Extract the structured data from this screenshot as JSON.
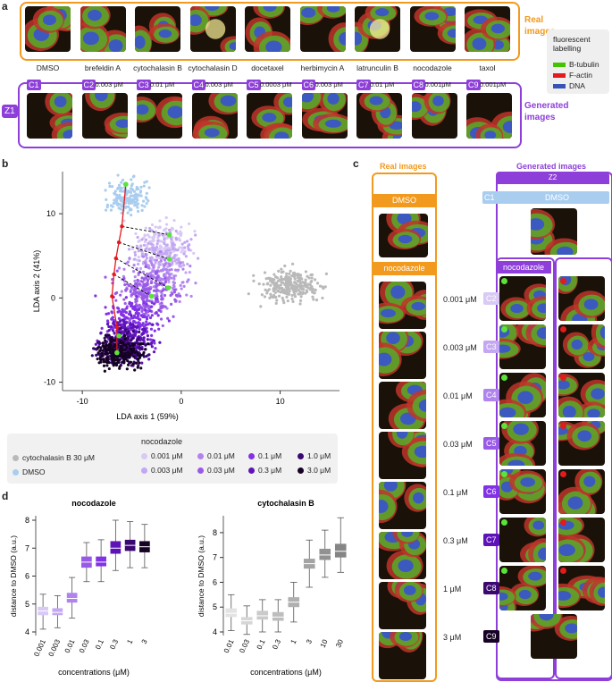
{
  "panel_a": {
    "label": "a",
    "real_images_label": "Real\nimages",
    "generated_images_label": "Generated\nimages",
    "treatments": [
      "DMSO",
      "brefeldin A",
      "cytochalasin B",
      "cytochalasin D",
      "docetaxel",
      "herbimycin A",
      "latrunculin B",
      "nocodazole",
      "taxol"
    ],
    "conditions": [
      {
        "tag": "C1",
        "dose": ""
      },
      {
        "tag": "C2",
        "dose": "0.003 μM"
      },
      {
        "tag": "C3",
        "dose": "0.01 μM"
      },
      {
        "tag": "C4",
        "dose": "0.003 μM"
      },
      {
        "tag": "C5",
        "dose": "0.0003 μM"
      },
      {
        "tag": "C6",
        "dose": "0.003 μM"
      },
      {
        "tag": "C7",
        "dose": "0.01 μM"
      },
      {
        "tag": "C8",
        "dose": "0.001μM"
      },
      {
        "tag": "C9",
        "dose": "0.001μM"
      }
    ],
    "z_tag": "Z1",
    "legend": {
      "title": "fluorescent labelling",
      "items": [
        {
          "label": "B-tubulin",
          "color": "#43c400"
        },
        {
          "label": "F-actin",
          "color": "#e41a1c"
        },
        {
          "label": "DNA",
          "color": "#3653b8"
        }
      ]
    }
  },
  "panel_b": {
    "label": "b",
    "chart_data": {
      "type": "scatter",
      "xlabel": "LDA axis 1 (59%)",
      "ylabel": "LDA axis 2 (41%)",
      "xticks": [
        "-10",
        "0",
        "10"
      ],
      "yticks": [
        "10",
        "0",
        "-10"
      ],
      "xlim": [
        -12,
        16
      ],
      "ylim": [
        -11,
        15
      ],
      "clusters": [
        {
          "name": "cytochalasin B 30 μM",
          "color": "#b9b9b9",
          "center": [
            11,
            1.5
          ],
          "spread": [
            2.2,
            1.4
          ],
          "n": 240
        },
        {
          "name": "DMSO",
          "color": "#a9cdef",
          "center": [
            -5.5,
            12
          ],
          "spread": [
            1.6,
            1.4
          ],
          "n": 160
        },
        {
          "name": "0.001 μM",
          "color": "#d9c9f5",
          "center": [
            -1.8,
            6.5
          ],
          "spread": [
            2,
            1.8
          ],
          "n": 160
        },
        {
          "name": "0.003 μM",
          "color": "#c4a7f2",
          "center": [
            -1.8,
            5
          ],
          "spread": [
            2,
            2
          ],
          "n": 160
        },
        {
          "name": "0.01 μM",
          "color": "#b183ef",
          "center": [
            -2.5,
            2
          ],
          "spread": [
            2.2,
            2
          ],
          "n": 180
        },
        {
          "name": "0.03 μM",
          "color": "#9a5ae8",
          "center": [
            -3.5,
            0
          ],
          "spread": [
            2.2,
            2
          ],
          "n": 180
        },
        {
          "name": "0.1 μM",
          "color": "#8232e6",
          "center": [
            -5,
            -3
          ],
          "spread": [
            2,
            2
          ],
          "n": 200
        },
        {
          "name": "0.3 μM",
          "color": "#5e13b8",
          "center": [
            -5.5,
            -5
          ],
          "spread": [
            1.8,
            1.6
          ],
          "n": 200
        },
        {
          "name": "1.0 μM",
          "color": "#3a0870",
          "center": [
            -6,
            -6
          ],
          "spread": [
            1.6,
            1.4
          ],
          "n": 200
        },
        {
          "name": "3.0 μM",
          "color": "#150224",
          "center": [
            -6.2,
            -6.5
          ],
          "spread": [
            1.5,
            1.3
          ],
          "n": 200
        }
      ],
      "red_path_x": [
        -5.6,
        -6,
        -6.3,
        -6.6,
        -6.8,
        -7,
        -6.5,
        -6.5
      ],
      "red_path_y": [
        13.5,
        8.5,
        6.6,
        4.7,
        2.8,
        0.2,
        -3.5,
        -6.5
      ],
      "green_points_x": [
        -5.6,
        -1.2,
        -1.2,
        -1.3,
        -3,
        -6.3,
        -6.5
      ],
      "green_points_y": [
        13.5,
        7.5,
        4.6,
        1.2,
        0.2,
        -4.5,
        -6.5
      ],
      "legend_group_title": "nocodazole",
      "legend_entries": [
        {
          "label": "cytochalasin B 30 μM",
          "color": "#b9b9b9"
        },
        {
          "label": "DMSO",
          "color": "#a9cdef"
        },
        {
          "label": "0.001 μM",
          "color": "#d9c9f5"
        },
        {
          "label": "0.003 μM",
          "color": "#c4a7f2"
        },
        {
          "label": "0.01 μM",
          "color": "#b183ef"
        },
        {
          "label": "0.03 μM",
          "color": "#9a5ae8"
        },
        {
          "label": "0.1 μM",
          "color": "#8232e6"
        },
        {
          "label": "0.3 μM",
          "color": "#5e13b8"
        },
        {
          "label": "1.0 μM",
          "color": "#3a0870"
        },
        {
          "label": "3.0 μM",
          "color": "#150224"
        }
      ]
    }
  },
  "panel_c": {
    "label": "c",
    "real_title": "Real images",
    "generated_title": "Generated images",
    "dmso_label": "DMSO",
    "nocodazole_label": "nocodazole",
    "z2": "Z2",
    "c1": "C1",
    "doses": [
      {
        "tag": "C2",
        "label": "0.001 μM"
      },
      {
        "tag": "C3",
        "label": "0.003 μM"
      },
      {
        "tag": "C4",
        "label": "0.01 μM"
      },
      {
        "tag": "C5",
        "label": "0.03 μM"
      },
      {
        "tag": "C6",
        "label": "0.1 μM"
      },
      {
        "tag": "C7",
        "label": "0.3 μM"
      },
      {
        "tag": "C8",
        "label": "1 μM"
      },
      {
        "tag": "C9",
        "label": "3 μM"
      }
    ]
  },
  "panel_d": {
    "label": "d",
    "chart_data": [
      {
        "type": "box",
        "title": "nocodazole",
        "ylabel": "distance to DMSO (a.u.)",
        "xlabel": "concentrations (μM)",
        "ylim": [
          4,
          8
        ],
        "yticks": [
          "4",
          "5",
          "6",
          "7",
          "8"
        ],
        "categories": [
          "0.001",
          "0.003",
          "0.01",
          "0.03",
          "0.1",
          "0.3",
          "1",
          "3"
        ],
        "colors": [
          "#d9c9f5",
          "#c4a7f2",
          "#b183ef",
          "#9a5ae8",
          "#8232e6",
          "#5e13b8",
          "#3a0870",
          "#150224"
        ],
        "boxes": [
          {
            "min": 4.1,
            "q1": 4.6,
            "median": 4.75,
            "q3": 4.9,
            "max": 5.35
          },
          {
            "min": 4.15,
            "q1": 4.6,
            "median": 4.7,
            "q3": 4.85,
            "max": 5.3
          },
          {
            "min": 4.5,
            "q1": 5.05,
            "median": 5.2,
            "q3": 5.4,
            "max": 5.95
          },
          {
            "min": 5.8,
            "q1": 6.3,
            "median": 6.5,
            "q3": 6.7,
            "max": 7.2
          },
          {
            "min": 5.8,
            "q1": 6.35,
            "median": 6.5,
            "q3": 6.7,
            "max": 7.3
          },
          {
            "min": 6.2,
            "q1": 6.8,
            "median": 7.0,
            "q3": 7.25,
            "max": 8.0
          },
          {
            "min": 6.3,
            "q1": 6.9,
            "median": 7.1,
            "q3": 7.3,
            "max": 7.95
          },
          {
            "min": 6.3,
            "q1": 6.85,
            "median": 7.05,
            "q3": 7.25,
            "max": 7.85
          }
        ]
      },
      {
        "type": "box",
        "title": "cytochalasin B",
        "ylabel": "distance to DMSO (a.u.)",
        "xlabel": "concentrations (μM)",
        "ylim": [
          4,
          8.5
        ],
        "yticks": [
          "4",
          "5",
          "6",
          "7",
          "8"
        ],
        "categories": [
          "0.01",
          "0.03",
          "0.1",
          "0.3",
          "1",
          "3",
          "10",
          "30"
        ],
        "colors": [
          "#e3e3e3",
          "#d6d6d6",
          "#cacaca",
          "#bdbdbd",
          "#b0b0b0",
          "#a3a3a3",
          "#929292",
          "#858585"
        ],
        "boxes": [
          {
            "min": 4.05,
            "q1": 4.6,
            "median": 4.75,
            "q3": 4.95,
            "max": 5.5
          },
          {
            "min": 3.9,
            "q1": 4.3,
            "median": 4.45,
            "q3": 4.6,
            "max": 5.05
          },
          {
            "min": 4.0,
            "q1": 4.5,
            "median": 4.65,
            "q3": 4.85,
            "max": 5.3
          },
          {
            "min": 4.0,
            "q1": 4.45,
            "median": 4.6,
            "q3": 4.8,
            "max": 5.3
          },
          {
            "min": 4.4,
            "q1": 5.0,
            "median": 5.2,
            "q3": 5.4,
            "max": 6.0
          },
          {
            "min": 5.8,
            "q1": 6.55,
            "median": 6.75,
            "q3": 6.95,
            "max": 7.7
          },
          {
            "min": 6.2,
            "q1": 6.9,
            "median": 7.1,
            "q3": 7.35,
            "max": 8.1
          },
          {
            "min": 6.4,
            "q1": 7.0,
            "median": 7.25,
            "q3": 7.55,
            "max": 8.6
          }
        ]
      }
    ]
  }
}
